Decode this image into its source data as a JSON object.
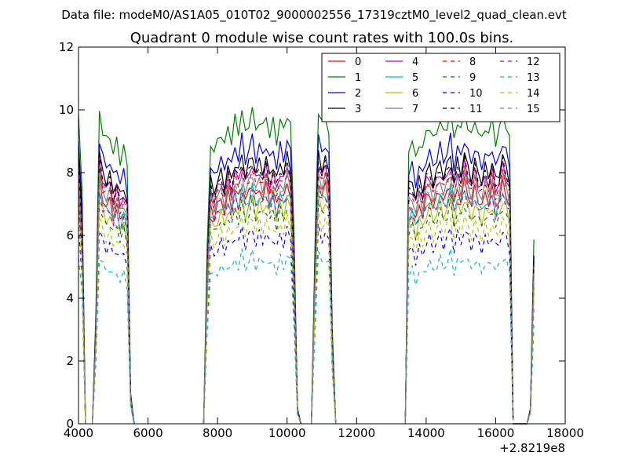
{
  "header": {
    "file_label": "Data file: modeM0/AS1A05_010T02_9000002556_17319cztM0_level2_quad_clean.evt",
    "title": "Quadrant 0 module wise count rates with 100.0s bins."
  },
  "chart_data": {
    "type": "line",
    "title": "Quadrant 0 module wise count rates with 100.0s bins.",
    "xlabel": "",
    "ylabel": "",
    "x_offset_label": "+2.8219e8",
    "xlim": [
      4000,
      18000
    ],
    "ylim": [
      0,
      12
    ],
    "x_ticks": [
      4000,
      6000,
      8000,
      10000,
      12000,
      14000,
      16000,
      18000
    ],
    "y_ticks": [
      0,
      2,
      4,
      6,
      8,
      10,
      12
    ],
    "grid": false,
    "legend_position": "top-right",
    "segments": [
      {
        "x": [
          4000,
          4100,
          4200
        ],
        "shape": [
          1.0,
          0.75,
          0.0
        ]
      },
      {
        "x": [
          4400,
          4500,
          4600,
          4700,
          4800,
          4900,
          5000,
          5100,
          5200,
          5300,
          5400,
          5500,
          5600
        ],
        "shape": [
          0.0,
          0.35,
          1.0,
          0.93,
          0.9,
          0.92,
          0.86,
          0.9,
          0.84,
          0.88,
          0.82,
          0.1,
          0.0
        ]
      },
      {
        "x": [
          7600,
          7700,
          7800,
          7900,
          8000,
          8100,
          8200,
          8300,
          8400,
          8500,
          8600,
          8700,
          8800,
          8900,
          9000,
          9100,
          9200,
          9300,
          9400,
          9500,
          9600,
          9700,
          9800,
          9900,
          10000,
          10100,
          10200,
          10300,
          10400
        ],
        "shape": [
          0.0,
          0.55,
          0.9,
          0.86,
          0.9,
          0.93,
          0.88,
          0.95,
          0.9,
          0.97,
          0.93,
          1.0,
          0.92,
          0.96,
          1.0,
          0.93,
          0.97,
          0.94,
          0.98,
          0.92,
          0.96,
          0.9,
          0.97,
          0.93,
          0.99,
          0.95,
          0.6,
          0.05,
          0.0
        ]
      },
      {
        "x": [
          10700,
          10800,
          10900,
          11000,
          11100,
          11200,
          11300,
          11400
        ],
        "shape": [
          0.0,
          0.55,
          1.0,
          0.95,
          0.98,
          0.93,
          0.3,
          0.0
        ]
      },
      {
        "x": [
          13400,
          13500,
          13600,
          13700,
          13800,
          13900,
          14000,
          14100,
          14200,
          14300,
          14400,
          14500,
          14600,
          14700,
          14800,
          14900,
          15000,
          15100,
          15200,
          15300,
          15400,
          15500,
          15600,
          15700,
          15800,
          15900,
          16000,
          16100,
          16200,
          16300,
          16400,
          16500
        ],
        "shape": [
          0.0,
          0.88,
          0.9,
          0.84,
          0.9,
          0.87,
          0.93,
          0.95,
          0.9,
          0.93,
          0.97,
          0.92,
          0.95,
          1.0,
          0.9,
          0.97,
          0.93,
          1.0,
          0.95,
          0.91,
          0.97,
          0.93,
          0.9,
          0.95,
          0.92,
          0.97,
          0.9,
          0.93,
          0.99,
          0.95,
          0.9,
          0.02
        ]
      },
      {
        "x": [
          16500,
          16600,
          16700,
          16800,
          16900,
          17000,
          17100
        ],
        "shape": [
          0.0,
          0.0,
          0.0,
          0.0,
          0.0,
          0.05,
          0.6
        ]
      }
    ],
    "series": [
      {
        "name": "0",
        "color": "#ff0000",
        "dash": "solid",
        "level": 7.7
      },
      {
        "name": "1",
        "color": "#008000",
        "dash": "solid",
        "level": 10.0
      },
      {
        "name": "2",
        "color": "#0000ff",
        "dash": "solid",
        "level": 9.1
      },
      {
        "name": "3",
        "color": "#000000",
        "dash": "solid",
        "level": 8.6
      },
      {
        "name": "4",
        "color": "#bf00bf",
        "dash": "solid",
        "level": 8.3
      },
      {
        "name": "5",
        "color": "#00bfbf",
        "dash": "solid",
        "level": 7.5
      },
      {
        "name": "6",
        "color": "#bfbf00",
        "dash": "solid",
        "level": 7.2
      },
      {
        "name": "7",
        "color": "#808080",
        "dash": "solid",
        "level": 8.0
      },
      {
        "name": "8",
        "color": "#ff0000",
        "dash": "dashed",
        "level": 8.1
      },
      {
        "name": "9",
        "color": "#008000",
        "dash": "dashed",
        "level": 7.0
      },
      {
        "name": "10",
        "color": "#0000ff",
        "dash": "dashed",
        "level": 6.2
      },
      {
        "name": "11",
        "color": "#000000",
        "dash": "dashed",
        "level": 8.4
      },
      {
        "name": "12",
        "color": "#bf00bf",
        "dash": "dashed",
        "level": 7.4
      },
      {
        "name": "13",
        "color": "#00bfbf",
        "dash": "dashed",
        "level": 5.4
      },
      {
        "name": "14",
        "color": "#bfbf00",
        "dash": "dashed",
        "level": 6.6
      },
      {
        "name": "15",
        "color": "#808080",
        "dash": "dashed",
        "level": 7.8
      }
    ]
  }
}
